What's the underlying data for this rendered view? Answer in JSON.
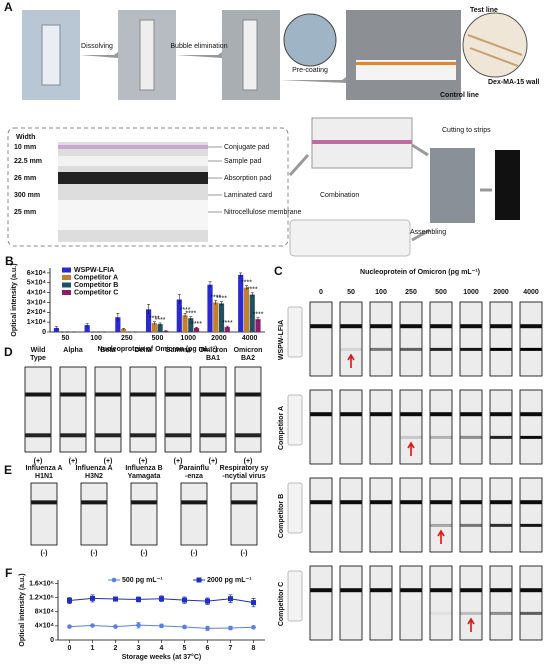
{
  "panel_a": {
    "label": "A",
    "steps": [
      "Dissolving",
      "Bubble elimination",
      "Pre-coating"
    ],
    "callouts": {
      "test_line": "Test line",
      "dex": "Dex-MA-15 wall",
      "control_line": "Control line"
    },
    "width_title": "Width",
    "layers": [
      {
        "size": "10 mm",
        "name": "Conjugate pad"
      },
      {
        "size": "22.5 mm",
        "name": "Sample pad"
      },
      {
        "size": "26 mm",
        "name": "Absorption pad"
      },
      {
        "size": "300 mm",
        "name": "Laminated card"
      },
      {
        "size": "25 mm",
        "name": "Nitrocellulose membrane"
      }
    ],
    "flow": [
      "Combination",
      "Cutting to strips",
      "Assembling"
    ]
  },
  "chart_data": [
    {
      "type": "bar",
      "label": "B",
      "y_label": "Optical intensity (a.u.)",
      "x_label": "Nucleoprotein of Omicron (pg mL⁻¹)",
      "categories": [
        "50",
        "100",
        "250",
        "500",
        "1000",
        "2000",
        "4000"
      ],
      "series": [
        {
          "name": "WSPW-LFIA",
          "color": "#2a2ad0",
          "values": [
            4000,
            7000,
            15000,
            23000,
            33000,
            48000,
            58000
          ],
          "errors": [
            1500,
            1500,
            4000,
            5000,
            5000,
            3000,
            2000
          ]
        },
        {
          "name": "Competitor A",
          "color": "#c47f2c",
          "values": [
            0,
            0,
            3000,
            9000,
            17000,
            30000,
            45000
          ],
          "errors": [
            0,
            0,
            800,
            1500,
            2000,
            2000,
            2000
          ]
        },
        {
          "name": "Competitor B",
          "color": "#1f5060",
          "values": [
            0,
            0,
            0,
            8000,
            14000,
            29000,
            38000
          ],
          "errors": [
            0,
            0,
            0,
            1200,
            1500,
            2000,
            2000
          ]
        },
        {
          "name": "Competitor C",
          "color": "#8c1c6c",
          "values": [
            0,
            0,
            0,
            1000,
            4000,
            5000,
            13000
          ],
          "errors": [
            0,
            0,
            0,
            500,
            800,
            1000,
            1500
          ]
        }
      ],
      "annotations": [
        {
          "text": "****",
          "series": 1,
          "category": "500"
        },
        {
          "text": "****",
          "series": 1,
          "category": "1000"
        },
        {
          "text": "****",
          "series": 1,
          "category": "2000"
        },
        {
          "text": "****",
          "series": 1,
          "category": "4000"
        },
        {
          "text": "****",
          "series": 2,
          "category": "500"
        },
        {
          "text": "****",
          "series": 2,
          "category": "1000"
        },
        {
          "text": "****",
          "series": 2,
          "category": "2000"
        },
        {
          "text": "****",
          "series": 2,
          "category": "4000"
        },
        {
          "text": "****",
          "series": 3,
          "category": "1000"
        },
        {
          "text": "****",
          "series": 3,
          "category": "2000"
        },
        {
          "text": "****",
          "series": 3,
          "category": "4000"
        }
      ],
      "ylim": [
        0,
        65000
      ],
      "yticks": [
        0,
        {
          "value": 10000,
          "label": "1×10⁴"
        },
        {
          "value": 20000,
          "label": "2×10⁴"
        },
        {
          "value": 30000,
          "label": "3×10⁴"
        },
        {
          "value": 40000,
          "label": "4×10⁴"
        },
        {
          "value": 50000,
          "label": "5×10⁴"
        },
        {
          "value": 60000,
          "label": "6×10⁴"
        }
      ],
      "legend": "upper left",
      "grid": false
    },
    {
      "type": "line",
      "label": "F",
      "y_label": "Optical intensity (a.u.)",
      "x_label": "Storage weeks (at 37°C)",
      "x": [
        0,
        1,
        2,
        3,
        4,
        5,
        6,
        7,
        8
      ],
      "series": [
        {
          "name": "500 pg mL⁻¹",
          "color": "#5b7fe6",
          "marker": "circle",
          "values": [
            38000,
            41000,
            38000,
            42000,
            40000,
            37000,
            33000,
            34000,
            36000
          ],
          "errors": [
            3000,
            3000,
            3000,
            8000,
            5000,
            4000,
            6000,
            5000,
            3000
          ]
        },
        {
          "name": "2000 pg mL⁻¹",
          "color": "#1e2fc4",
          "marker": "square",
          "values": [
            112000,
            118000,
            116000,
            115000,
            117000,
            113000,
            110000,
            117000,
            106000
          ],
          "errors": [
            9000,
            10000,
            6000,
            7000,
            8000,
            9000,
            9000,
            11000,
            12000
          ]
        }
      ],
      "xlim": [
        -0.5,
        8.5
      ],
      "xticks": [
        0,
        1,
        2,
        3,
        4,
        5,
        6,
        7,
        8
      ],
      "ylim": [
        0,
        170000
      ],
      "yticks": [
        0,
        {
          "value": 40000,
          "label": "4×10⁴"
        },
        {
          "value": 80000,
          "label": "8×10⁴"
        },
        {
          "value": 120000,
          "label": "1.2×10⁵"
        },
        {
          "value": 160000,
          "label": "1.6×10⁵"
        }
      ],
      "legend": "upper center",
      "grid": false
    }
  ],
  "panel_c": {
    "label": "C",
    "title": "Nucleoprotein of Omicron (pg mL⁻¹)",
    "concentrations": [
      "0",
      "50",
      "100",
      "250",
      "500",
      "1000",
      "2000",
      "4000"
    ],
    "rows": [
      "WSPW-LFIA",
      "Competitor A",
      "Competitor B",
      "Competitor C"
    ]
  },
  "panel_d": {
    "label": "D",
    "strains": [
      {
        "lines": [
          "Wild",
          "Type"
        ],
        "result": "(+)"
      },
      {
        "lines": [
          "Alpha"
        ],
        "result": "(+)"
      },
      {
        "lines": [
          "Beta"
        ],
        "result": "(+)"
      },
      {
        "lines": [
          "Delta"
        ],
        "result": "(+)"
      },
      {
        "lines": [
          "Gamma"
        ],
        "result": "(+)"
      },
      {
        "lines": [
          "Omicron",
          "BA1"
        ],
        "result": "(+)"
      },
      {
        "lines": [
          "Omicron",
          "BA2"
        ],
        "result": "(+)"
      }
    ]
  },
  "panel_e": {
    "label": "E",
    "viruses": [
      {
        "lines": [
          "Influenza A",
          "H1N1"
        ],
        "result": "(-)"
      },
      {
        "lines": [
          "Influenza A",
          "H3N2"
        ],
        "result": "(-)"
      },
      {
        "lines": [
          "Influenza B",
          "Yamagata"
        ],
        "result": "(-)"
      },
      {
        "lines": [
          "Parainflu",
          "-enza"
        ],
        "result": "(-)"
      },
      {
        "lines": [
          "Respiratory sy",
          "-ncytial virus"
        ],
        "result": "(-)"
      }
    ]
  }
}
